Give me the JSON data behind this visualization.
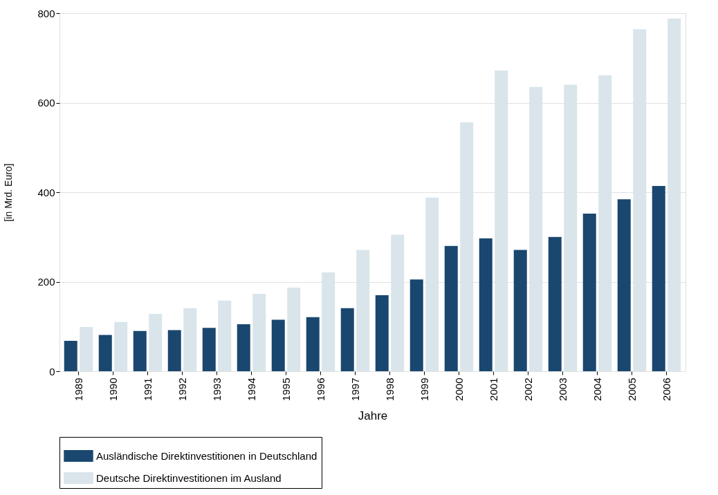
{
  "chart_data": {
    "type": "bar",
    "xlabel": "Jahre",
    "ylabel": "[in Mrd. Euro]",
    "categories": [
      "1989",
      "1990",
      "1991",
      "1992",
      "1993",
      "1994",
      "1995",
      "1996",
      "1997",
      "1998",
      "1999",
      "2000",
      "2001",
      "2002",
      "2003",
      "2004",
      "2005",
      "2006"
    ],
    "series": [
      {
        "name": "Ausländische Direktinvestitionen in Deutschland",
        "color": "#1a476f",
        "values": [
          68,
          81,
          90,
          92,
          97,
          105,
          115,
          121,
          141,
          170,
          205,
          280,
          297,
          271,
          300,
          352,
          384,
          414
        ]
      },
      {
        "name": "Deutsche Direktinvestitionen im Ausland",
        "color": "#d9e5eb",
        "values": [
          99,
          110,
          128,
          141,
          158,
          173,
          187,
          221,
          271,
          305,
          388,
          556,
          672,
          635,
          640,
          661,
          764,
          788
        ]
      }
    ],
    "ylim": [
      0,
      800
    ],
    "yticks": [
      0,
      200,
      400,
      600,
      800
    ],
    "grid": "y",
    "legend": "bottom"
  }
}
